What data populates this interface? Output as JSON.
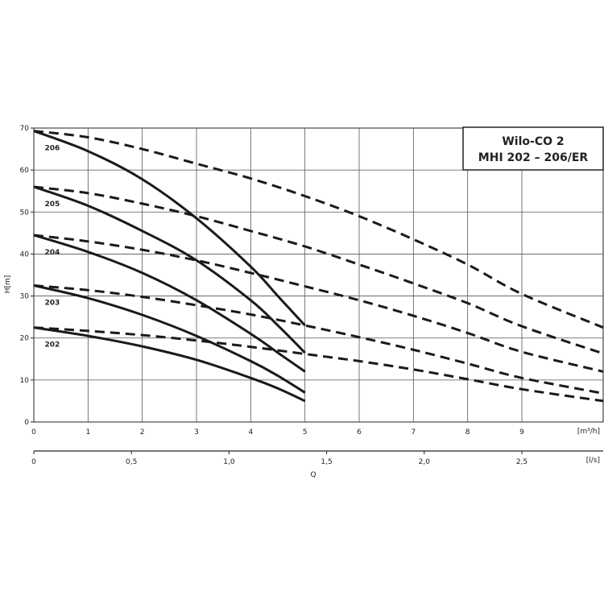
{
  "chart_data": {
    "type": "line",
    "title": "Wilo-CO 2",
    "subtitle": "MHI 202 – 206/ER",
    "ylabel": "H[m]",
    "xlabel": "Q",
    "x_unit_top": "[m³/h]",
    "x_unit_bottom": "[l/s]",
    "xlim": [
      0,
      10.5
    ],
    "ylim": [
      0,
      70
    ],
    "xticks": [
      "0",
      "1",
      "2",
      "3",
      "4",
      "5",
      "6",
      "7",
      "8",
      "9"
    ],
    "yticks": [
      "0",
      "10",
      "20",
      "30",
      "40",
      "50",
      "60",
      "70"
    ],
    "x2ticks": [
      {
        "value": 0,
        "label": "0"
      },
      {
        "value": 0.5,
        "label": "0,5"
      },
      {
        "value": 1.0,
        "label": "1,0"
      },
      {
        "value": 1.5,
        "label": "1,5"
      },
      {
        "value": 2.0,
        "label": "2,0"
      },
      {
        "value": 2.5,
        "label": "2,5"
      }
    ],
    "grid": true,
    "series": [
      {
        "name": "206",
        "single": [
          [
            0,
            69.3
          ],
          [
            1,
            64.5
          ],
          [
            2,
            57.8
          ],
          [
            3,
            48.5
          ],
          [
            4,
            37
          ],
          [
            4.5,
            30
          ],
          [
            5,
            23
          ]
        ],
        "double": [
          [
            0,
            69.3
          ],
          [
            1,
            67.8
          ],
          [
            2,
            65
          ],
          [
            3,
            61.5
          ],
          [
            4,
            58
          ],
          [
            5,
            53.8
          ],
          [
            6,
            49
          ],
          [
            7,
            43.5
          ],
          [
            8,
            37.5
          ],
          [
            9,
            30.5
          ],
          [
            10.5,
            22.5
          ]
        ]
      },
      {
        "name": "205",
        "single": [
          [
            0,
            56
          ],
          [
            1,
            51.5
          ],
          [
            2,
            45.5
          ],
          [
            3,
            38.5
          ],
          [
            4,
            29
          ],
          [
            4.5,
            23
          ],
          [
            5,
            16.5
          ]
        ],
        "double": [
          [
            0,
            56
          ],
          [
            1,
            54.5
          ],
          [
            2,
            52
          ],
          [
            3,
            49
          ],
          [
            4,
            45.5
          ],
          [
            5,
            41.8
          ],
          [
            6,
            37.5
          ],
          [
            7,
            33
          ],
          [
            8,
            28.3
          ],
          [
            9,
            22.8
          ],
          [
            10.5,
            16.3
          ]
        ]
      },
      {
        "name": "204",
        "single": [
          [
            0,
            44.5
          ],
          [
            1,
            40.5
          ],
          [
            2,
            35.5
          ],
          [
            3,
            29
          ],
          [
            4,
            21
          ],
          [
            4.5,
            16.5
          ],
          [
            5,
            12
          ]
        ],
        "double": [
          [
            0,
            44.5
          ],
          [
            1,
            43
          ],
          [
            2,
            41
          ],
          [
            3,
            38.5
          ],
          [
            4,
            35.5
          ],
          [
            5,
            32.3
          ],
          [
            6,
            29
          ],
          [
            7,
            25.3
          ],
          [
            8,
            21.2
          ],
          [
            9,
            16.7
          ],
          [
            10.5,
            12
          ]
        ]
      },
      {
        "name": "203",
        "single": [
          [
            0,
            32.5
          ],
          [
            1,
            29.5
          ],
          [
            2,
            25.5
          ],
          [
            3,
            20.5
          ],
          [
            4,
            14.5
          ],
          [
            4.5,
            11
          ],
          [
            5,
            7
          ]
        ],
        "double": [
          [
            0,
            32.5
          ],
          [
            1,
            31.4
          ],
          [
            2,
            29.8
          ],
          [
            3,
            27.8
          ],
          [
            4,
            25.6
          ],
          [
            5,
            23
          ],
          [
            6,
            20.2
          ],
          [
            7,
            17.2
          ],
          [
            8,
            13.9
          ],
          [
            9,
            10.5
          ],
          [
            10.5,
            6.8
          ]
        ]
      },
      {
        "name": "202",
        "single": [
          [
            0,
            22.5
          ],
          [
            1,
            20.5
          ],
          [
            2,
            18
          ],
          [
            3,
            14.8
          ],
          [
            4,
            10.5
          ],
          [
            4.5,
            8
          ],
          [
            5,
            5
          ]
        ],
        "double": [
          [
            0,
            22.5
          ],
          [
            1,
            21.7
          ],
          [
            2,
            20.7
          ],
          [
            3,
            19.4
          ],
          [
            4,
            17.9
          ],
          [
            5,
            16.2
          ],
          [
            6,
            14.5
          ],
          [
            7,
            12.5
          ],
          [
            8,
            10.2
          ],
          [
            9,
            7.8
          ],
          [
            10.5,
            5
          ]
        ]
      }
    ]
  }
}
